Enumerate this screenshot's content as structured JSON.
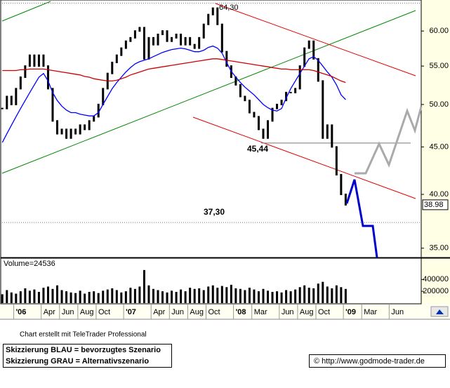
{
  "chart_data": [
    {
      "type": "candlestick",
      "categories": [
        null,
        null,
        null,
        "'06",
        null,
        null,
        null,
        null,
        null,
        "Apr",
        null,
        null,
        null,
        "Jun",
        null,
        null,
        null,
        "Aug",
        null,
        null,
        null,
        "Oct",
        null,
        null,
        null,
        null,
        null,
        "'07",
        null,
        null,
        null,
        null,
        null,
        "Apr",
        null,
        null,
        null,
        "Jun",
        null,
        null,
        null,
        "Aug",
        null,
        null,
        null,
        "Oct",
        null,
        null,
        null,
        null,
        null,
        "'08",
        null,
        null,
        null,
        "Mar",
        null,
        null,
        null,
        null,
        null,
        "Jun",
        null,
        null,
        null,
        "Aug",
        null,
        null,
        null,
        "Oct",
        null,
        null,
        null,
        null,
        null,
        "'09",
        null,
        null,
        null,
        "Mar",
        null,
        null,
        null,
        null,
        null,
        "Jun",
        null,
        null,
        null,
        null,
        null,
        null
      ],
      "series": [
        {
          "type": "candle",
          "color": "#000000",
          "values": [
            49.5,
            51,
            50,
            52,
            53.5,
            55,
            56.5,
            55,
            56.5,
            55,
            52,
            48,
            46.5,
            47,
            46,
            47,
            46.5,
            47.5,
            47,
            48,
            48.5,
            50,
            52,
            54,
            55.5,
            56.5,
            57.5,
            58.5,
            59,
            60,
            60.5,
            56,
            59,
            58,
            59.5,
            60,
            58.5,
            59,
            59.5,
            58,
            59,
            58,
            57.5,
            59,
            61,
            62.5,
            63.5,
            61,
            57,
            55,
            53.5,
            52.5,
            51,
            50.5,
            49,
            48.5,
            47,
            46,
            48,
            49.5,
            50,
            50.5,
            51.5,
            51.5,
            52,
            55,
            57.5,
            58.5,
            56,
            53,
            46,
            47.5,
            45,
            42,
            40,
            38.98,
            null,
            null,
            null,
            null,
            null,
            null,
            null,
            null,
            null,
            null,
            null,
            null,
            null,
            null,
            null,
            null
          ]
        },
        {
          "type": "line",
          "color": "#0000ff",
          "values": [
            45.5,
            46.5,
            47.5,
            48.5,
            49.5,
            50.5,
            51.5,
            52.5,
            53.5,
            54,
            53,
            51.5,
            50.5,
            49.8,
            49.3,
            49,
            49,
            48.8,
            48.7,
            48.6,
            48.6,
            49,
            50,
            51,
            52,
            52.8,
            53.5,
            54.2,
            54.8,
            55.3,
            55.6,
            55.8,
            56,
            56.3,
            56.6,
            56.9,
            57.1,
            57.3,
            57.4,
            57.5,
            57.4,
            57.2,
            57,
            57,
            57.2,
            57.6,
            57.8,
            57.5,
            56.8,
            55.5,
            54.3,
            53.5,
            52.8,
            52.2,
            51.7,
            51.2,
            50.6,
            50,
            49.6,
            49.3,
            49.2,
            49.5,
            50.8,
            52,
            53,
            54,
            55,
            56,
            56.3,
            55.8,
            55,
            54.2,
            53.5,
            52.5,
            51.2,
            50.6,
            null,
            null,
            null,
            null,
            null,
            null,
            null,
            null,
            null,
            null,
            null,
            null,
            null,
            null,
            null,
            null
          ]
        },
        {
          "type": "line",
          "color": "#cc0000",
          "values": [
            54.4,
            54.4,
            54.4,
            54.4,
            54.5,
            54.5,
            54.6,
            54.6,
            54.6,
            54.6,
            54.5,
            54.4,
            54.3,
            54.2,
            54.1,
            54.0,
            53.9,
            53.8,
            53.6,
            53.5,
            53.3,
            53.2,
            53.1,
            53.0,
            53.0,
            53.1,
            53.3,
            53.5,
            53.8,
            54.0,
            54.2,
            54.4,
            54.6,
            54.7,
            54.8,
            54.9,
            55.0,
            55.1,
            55.2,
            55.3,
            55.4,
            55.5,
            55.6,
            55.7,
            55.8,
            55.9,
            56.0,
            56.0,
            55.9,
            55.8,
            55.7,
            55.6,
            55.5,
            55.4,
            55.3,
            55.2,
            55.1,
            55.0,
            54.9,
            54.8,
            54.7,
            54.6,
            54.6,
            54.5,
            54.5,
            54.5,
            54.5,
            54.5,
            54.4,
            54.2,
            54.0,
            53.8,
            53.6,
            53.3,
            53.0,
            52.8,
            null,
            null,
            null,
            null,
            null,
            null,
            null,
            null,
            null,
            null,
            null,
            null,
            null,
            null,
            null,
            null
          ]
        }
      ],
      "log_scale": true,
      "ylim": [
        34.2,
        64.8
      ],
      "yticks": [
        {
          "value": 35,
          "label": "35.00"
        },
        {
          "value": 40,
          "label": "40.00"
        },
        {
          "value": 45,
          "label": "45.00"
        },
        {
          "value": 50,
          "label": "50.00"
        },
        {
          "value": 55,
          "label": "55.00"
        },
        {
          "value": 60,
          "label": "60.00"
        }
      ],
      "annotations": [
        {
          "value": 64.3,
          "label": "64,30"
        },
        {
          "value": 45.44,
          "label": "45,44"
        },
        {
          "value": 37.3,
          "label": "37,30"
        }
      ]
    },
    {
      "type": "bar",
      "title": "Volume=24536",
      "color": "#000000",
      "values": [
        150000,
        220000,
        180000,
        160000,
        200000,
        250000,
        210000,
        230000,
        190000,
        260000,
        280000,
        240000,
        300000,
        220000,
        200000,
        180000,
        170000,
        210000,
        160000,
        190000,
        200000,
        170000,
        210000,
        230000,
        250000,
        220000,
        180000,
        200000,
        260000,
        240000,
        280000,
        560000,
        300000,
        240000,
        220000,
        200000,
        180000,
        210000,
        190000,
        230000,
        200000,
        260000,
        240000,
        250000,
        220000,
        280000,
        300000,
        260000,
        290000,
        270000,
        310000,
        250000,
        240000,
        220000,
        260000,
        230000,
        200000,
        240000,
        210000,
        190000,
        200000,
        180000,
        220000,
        200000,
        230000,
        270000,
        300000,
        260000,
        250000,
        330000,
        360000,
        280000,
        250000,
        300000,
        270000,
        240000,
        null,
        null,
        null,
        null,
        null,
        null,
        null,
        null,
        null,
        null,
        null,
        null,
        null,
        null,
        null,
        null
      ],
      "ylim": [
        0,
        760000
      ],
      "yticks": [
        200000,
        400000
      ]
    }
  ],
  "footer": {
    "credit": "Chart erstellt mit TeleTrader Professional",
    "notes": [
      "Skizzierung BLAU = bevorzugtes Szenario",
      "Skizzierung GRAU = Alternativszenario"
    ],
    "url": "© http://www.godmode-trader.de"
  }
}
